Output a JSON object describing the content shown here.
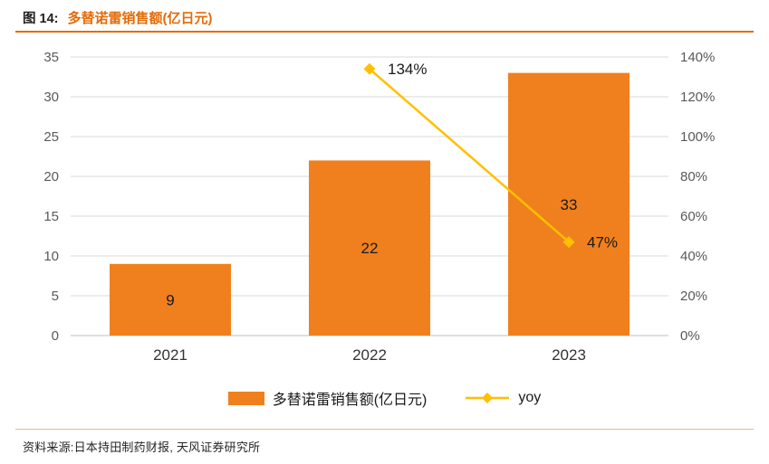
{
  "header": {
    "figure_label": "图 14:",
    "title": "多替诺雷销售额(亿日元)"
  },
  "chart_data": {
    "type": "combo-bar-line",
    "categories": [
      "2021",
      "2022",
      "2023"
    ],
    "series": [
      {
        "name": "多替诺雷销售额(亿日元)",
        "type": "bar",
        "axis": "left",
        "values": [
          9,
          22,
          33
        ],
        "data_labels": [
          "9",
          "22",
          "33"
        ],
        "color": "#f0801e"
      },
      {
        "name": "yoy",
        "type": "line",
        "axis": "right",
        "values": [
          null,
          134,
          47
        ],
        "point_labels": [
          "",
          "134%",
          "47%"
        ],
        "color": "#ffc000"
      }
    ],
    "left_axis": {
      "min": 0,
      "max": 35,
      "step": 5,
      "tick_labels": [
        "0",
        "5",
        "10",
        "15",
        "20",
        "25",
        "30",
        "35"
      ]
    },
    "right_axis": {
      "min": 0,
      "max": 140,
      "step": 20,
      "tick_labels": [
        "0%",
        "20%",
        "40%",
        "60%",
        "80%",
        "100%",
        "120%",
        "140%"
      ]
    },
    "grid": true,
    "legend_position": "bottom",
    "colors": {
      "grid": "#d9d9d9",
      "baseline": "#bfbfbf",
      "tick_text": "#595959",
      "label_text": "#1a1a1a"
    }
  },
  "footer": {
    "source": "资料来源:日本持田制药财报, 天风证券研究所"
  }
}
